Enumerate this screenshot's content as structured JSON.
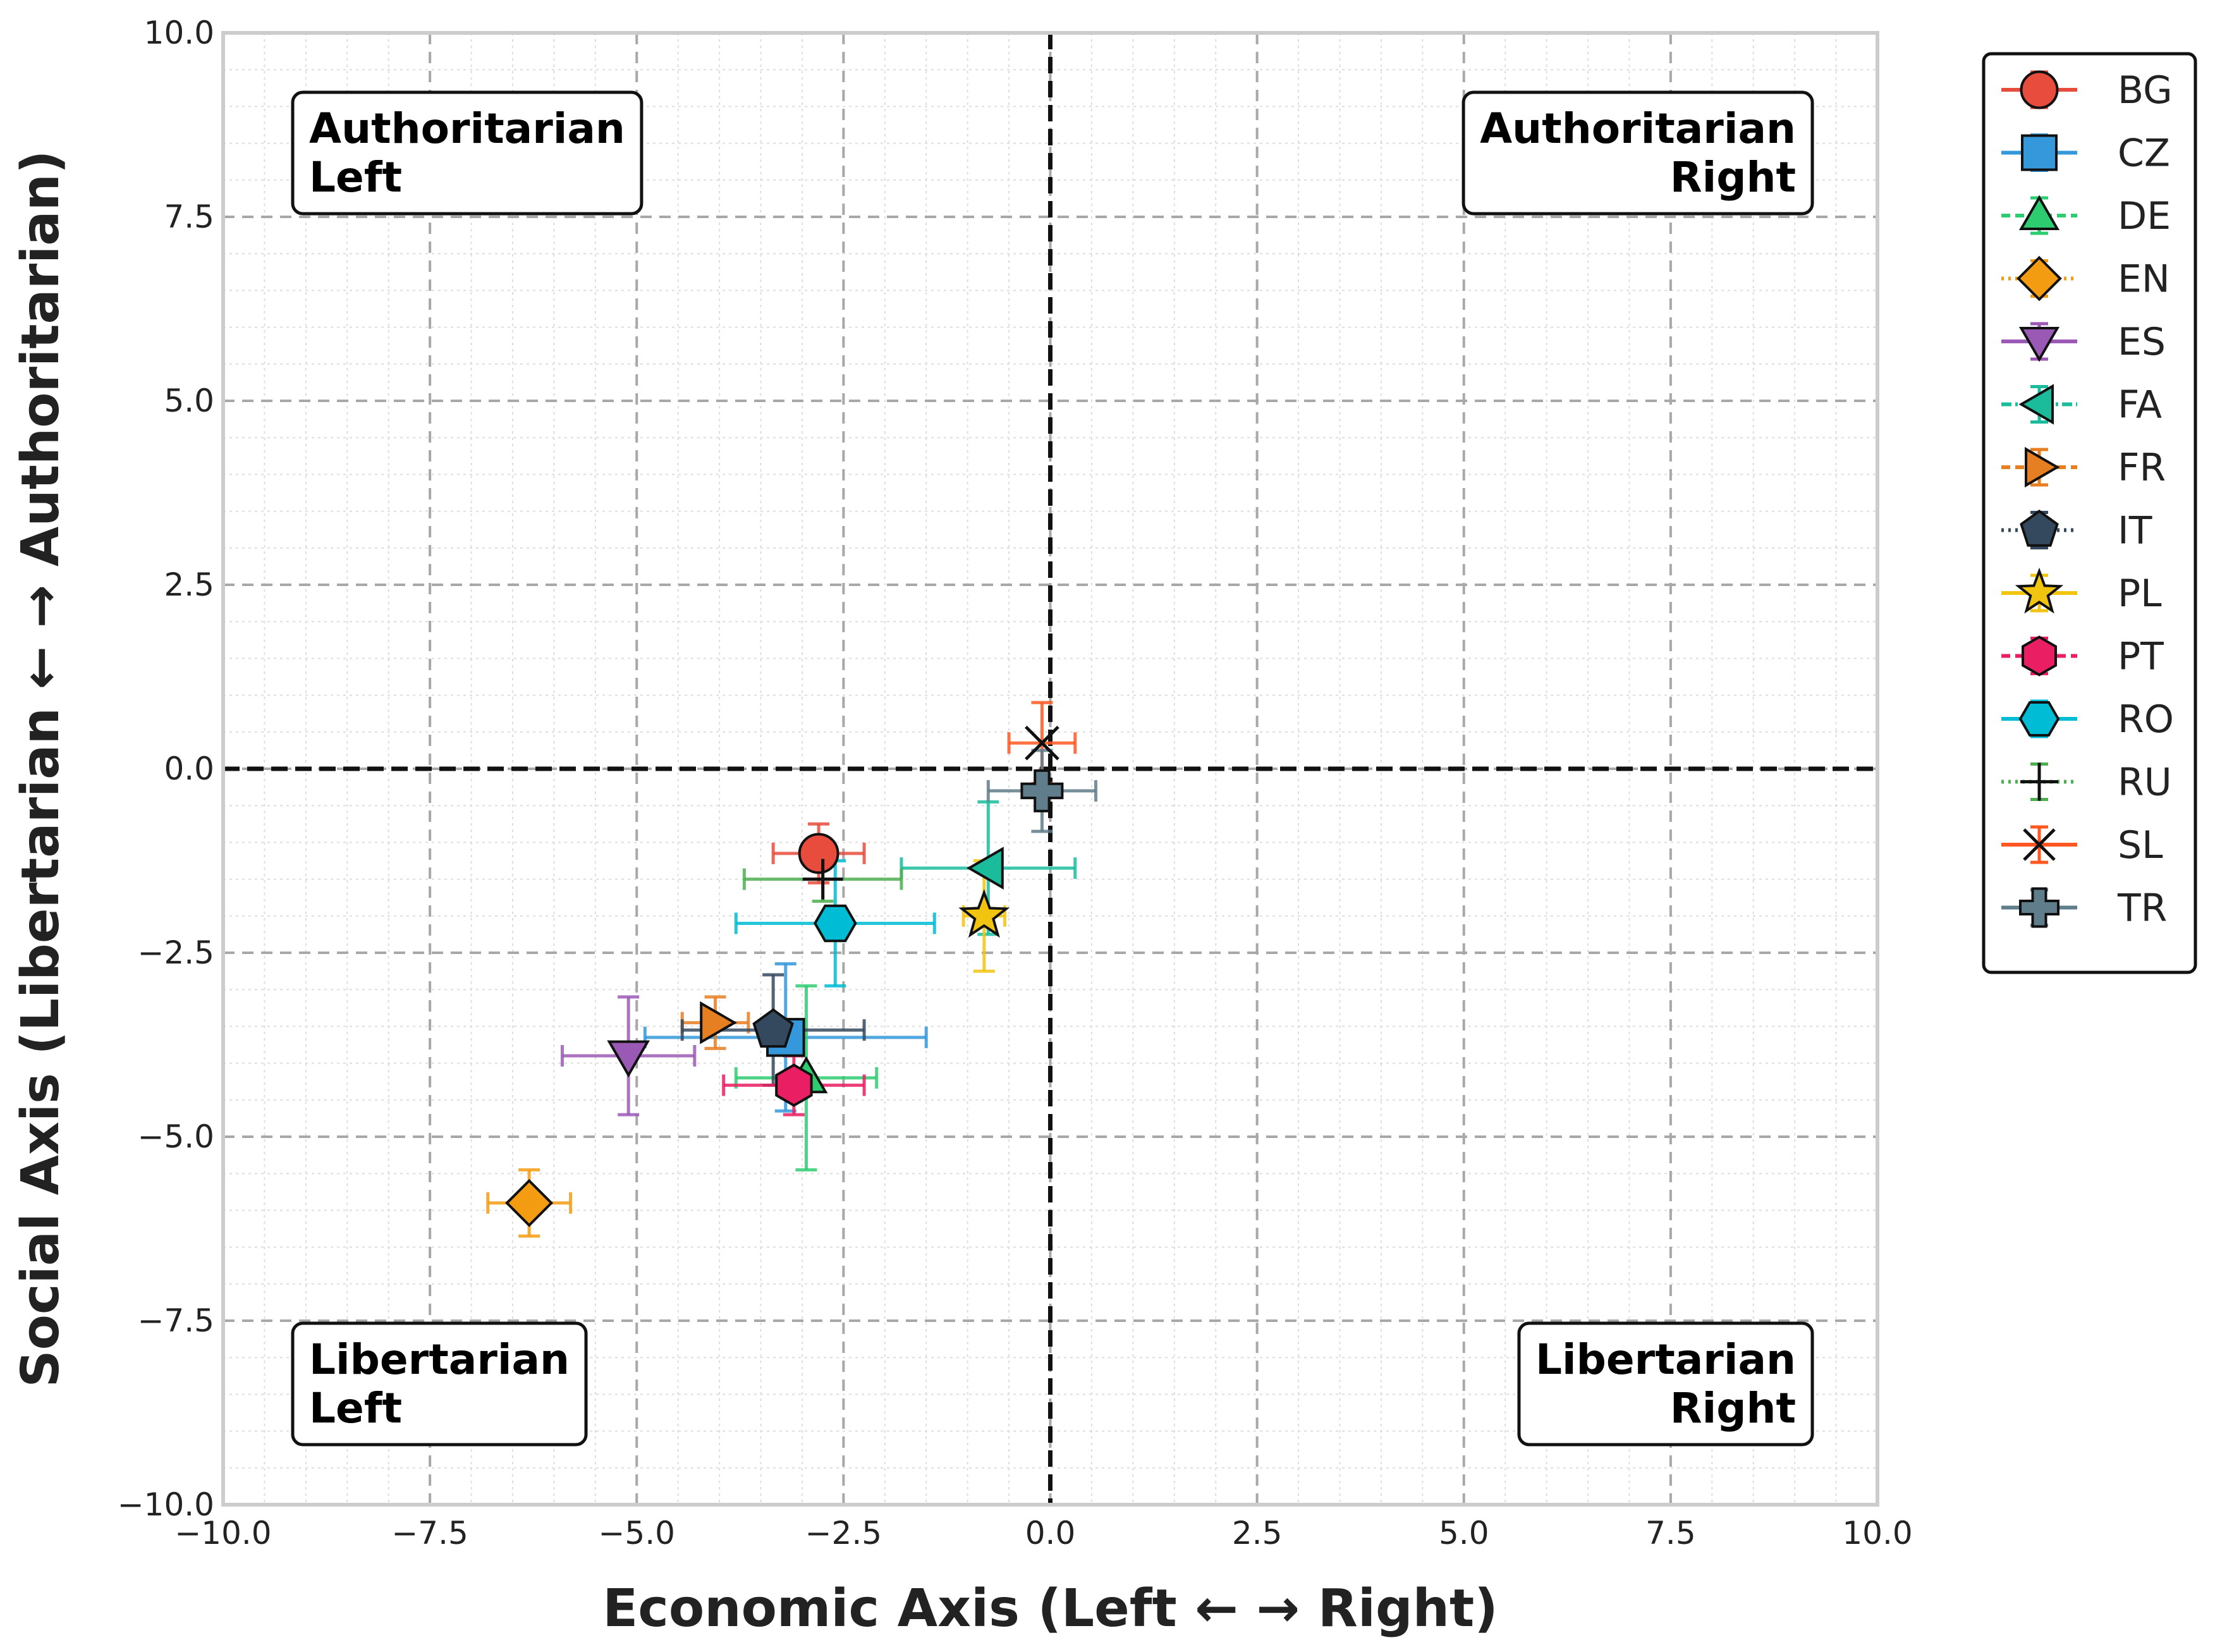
{
  "chart_data": {
    "type": "scatter",
    "title": "",
    "xlabel": "Economic Axis (Left ← → Right)",
    "ylabel": "Social Axis (Libertarian ← → Authoritarian)",
    "xlim": [
      -10,
      10
    ],
    "ylim": [
      -10,
      10
    ],
    "x_ticks": [
      -10,
      -7.5,
      -5,
      -2.5,
      0,
      2.5,
      5,
      7.5,
      10
    ],
    "y_ticks": [
      -10,
      -7.5,
      -5,
      -2.5,
      0,
      2.5,
      5,
      7.5,
      10
    ],
    "x_tick_labels": [
      "−10.0",
      "−7.5",
      "−5.0",
      "−2.5",
      "0.0",
      "2.5",
      "5.0",
      "7.5",
      "10.0"
    ],
    "y_tick_labels": [
      "−10.0",
      "−7.5",
      "−5.0",
      "−2.5",
      "0.0",
      "2.5",
      "5.0",
      "7.5",
      "10.0"
    ],
    "grid": true,
    "minor_grid": true,
    "zero_lines": true,
    "legend_position": "outside top-right",
    "quadrants": [
      {
        "line1": "Authoritarian",
        "line2": "Left",
        "position": "top-left",
        "align": "left"
      },
      {
        "line1": "Authoritarian",
        "line2": "Right",
        "position": "top-right",
        "align": "right"
      },
      {
        "line1": "Libertarian",
        "line2": "Left",
        "position": "bottom-left",
        "align": "left"
      },
      {
        "line1": "Libertarian",
        "line2": "Right",
        "position": "bottom-right",
        "align": "right"
      }
    ],
    "series": [
      {
        "name": "BG",
        "marker": "circle",
        "color": "#e74c3c",
        "x": -2.8,
        "y": -1.15,
        "xerr": 0.55,
        "yerr": 0.4,
        "line": "solid"
      },
      {
        "name": "CZ",
        "marker": "square",
        "color": "#3498db",
        "x": -3.2,
        "y": -3.65,
        "xerr": 1.7,
        "yerr": 1.0,
        "line": "solid"
      },
      {
        "name": "DE",
        "marker": "triangle-up",
        "color": "#2ecc71",
        "x": -2.95,
        "y": -4.2,
        "xerr": 0.85,
        "yerr": 1.25,
        "line": "dashed"
      },
      {
        "name": "EN",
        "marker": "diamond",
        "color": "#f39c12",
        "x": -6.3,
        "y": -5.9,
        "xerr": 0.5,
        "yerr": 0.45,
        "line": "dotted"
      },
      {
        "name": "ES",
        "marker": "triangle-down",
        "color": "#9b59b6",
        "x": -5.1,
        "y": -3.9,
        "xerr": 0.8,
        "yerr": 0.8,
        "line": "solid"
      },
      {
        "name": "FA",
        "marker": "triangle-left",
        "color": "#1abc9c",
        "x": -0.75,
        "y": -1.35,
        "xerr": 1.05,
        "yerr": 0.9,
        "line": "dashdot"
      },
      {
        "name": "FR",
        "marker": "triangle-right",
        "color": "#e67e22",
        "x": -4.05,
        "y": -3.45,
        "xerr": 0.4,
        "yerr": 0.35,
        "line": "dashed"
      },
      {
        "name": "IT",
        "marker": "pentagon",
        "color": "#34495e",
        "x": -3.35,
        "y": -3.55,
        "xerr": 1.1,
        "yerr": 0.75,
        "line": "dotted"
      },
      {
        "name": "PL",
        "marker": "star",
        "color": "#f1c40f",
        "x": -0.8,
        "y": -2.0,
        "xerr": 0.25,
        "yerr": 0.75,
        "line": "solid"
      },
      {
        "name": "PT",
        "marker": "hexagon",
        "color": "#e91e63",
        "x": -3.1,
        "y": -4.3,
        "xerr": 0.85,
        "yerr": 0.4,
        "line": "dashed"
      },
      {
        "name": "RO",
        "marker": "hexagon2",
        "color": "#00bcd4",
        "x": -2.6,
        "y": -2.1,
        "xerr": 1.2,
        "yerr": 0.85,
        "line": "solid"
      },
      {
        "name": "RU",
        "marker": "plus",
        "color": "#4caf50",
        "x": -2.75,
        "y": -1.5,
        "xerr": 0.95,
        "yerr": 0.3,
        "line": "dotted"
      },
      {
        "name": "SL",
        "marker": "x",
        "color": "#ff5722",
        "x": -0.1,
        "y": 0.35,
        "xerr": 0.4,
        "yerr": 0.55,
        "line": "solid"
      },
      {
        "name": "TR",
        "marker": "plus-filled",
        "color": "#607d8b",
        "x": -0.1,
        "y": -0.3,
        "xerr": 0.65,
        "yerr": 0.55,
        "line": "solid"
      }
    ]
  }
}
